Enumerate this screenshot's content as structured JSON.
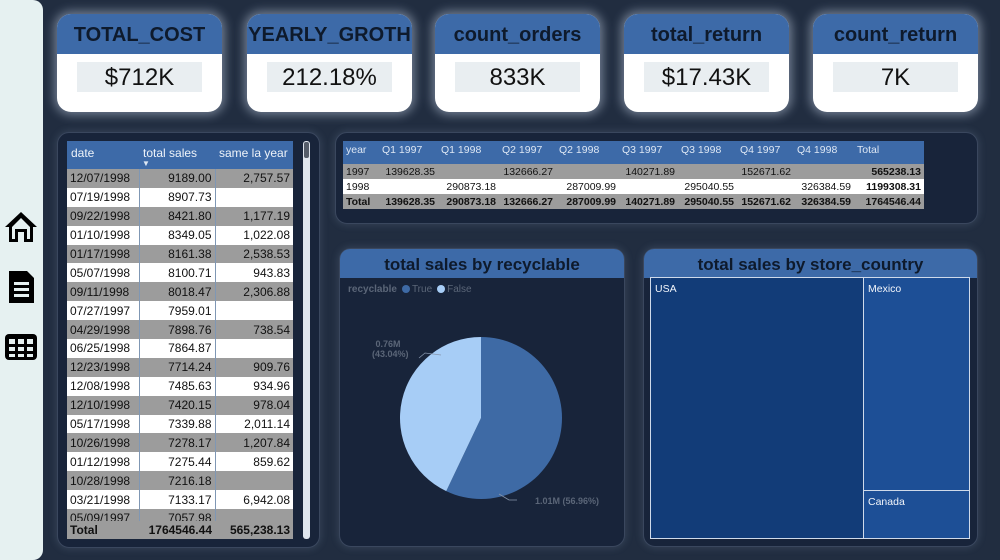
{
  "nav": {
    "home": "home-icon",
    "report": "document-icon",
    "table": "table-icon"
  },
  "kpis": [
    {
      "title": "TOTAL_COST",
      "value": "$712K"
    },
    {
      "title": "YEARLY_GROTH",
      "value": "212.18%"
    },
    {
      "title": "count_orders",
      "value": "833K"
    },
    {
      "title": "total_return",
      "value": "$17.43K"
    },
    {
      "title": "count_return",
      "value": "7K"
    }
  ],
  "sales_table": {
    "headers": [
      "date",
      "total sales",
      "same la year"
    ],
    "rows": [
      [
        "12/07/1998",
        "9189.00",
        "2,757.57"
      ],
      [
        "07/19/1998",
        "8907.73",
        ""
      ],
      [
        "09/22/1998",
        "8421.80",
        "1,177.19"
      ],
      [
        "01/10/1998",
        "8349.05",
        "1,022.08"
      ],
      [
        "01/17/1998",
        "8161.38",
        "2,538.53"
      ],
      [
        "05/07/1998",
        "8100.71",
        "943.83"
      ],
      [
        "09/11/1998",
        "8018.47",
        "2,306.88"
      ],
      [
        "07/27/1997",
        "7959.01",
        ""
      ],
      [
        "04/29/1998",
        "7898.76",
        "738.54"
      ],
      [
        "06/25/1998",
        "7864.87",
        ""
      ],
      [
        "12/23/1998",
        "7714.24",
        "909.76"
      ],
      [
        "12/08/1998",
        "7485.63",
        "934.96"
      ],
      [
        "12/10/1998",
        "7420.15",
        "978.04"
      ],
      [
        "05/17/1998",
        "7339.88",
        "2,011.14"
      ],
      [
        "10/26/1998",
        "7278.17",
        "1,207.84"
      ],
      [
        "01/12/1998",
        "7275.44",
        "859.62"
      ],
      [
        "10/28/1998",
        "7216.18",
        ""
      ],
      [
        "03/21/1998",
        "7133.17",
        "6,942.08"
      ],
      [
        "05/09/1997",
        "7057.98",
        ""
      ]
    ],
    "total": [
      "Total",
      "1764546.44",
      "565,238.13"
    ]
  },
  "matrix": {
    "headers": [
      "year",
      "Q1 1997",
      "Q1 1998",
      "Q2 1997",
      "Q2 1998",
      "Q3 1997",
      "Q3 1998",
      "Q4 1997",
      "Q4 1998",
      "Total"
    ],
    "rows": [
      [
        "1997",
        "139628.35",
        "",
        "132666.27",
        "",
        "140271.89",
        "",
        "152671.62",
        "",
        "565238.13"
      ],
      [
        "1998",
        "",
        "290873.18",
        "",
        "287009.99",
        "",
        "295040.55",
        "",
        "326384.59",
        "1199308.31"
      ]
    ],
    "total": [
      "Total",
      "139628.35",
      "290873.18",
      "132666.27",
      "287009.99",
      "140271.89",
      "295040.55",
      "152671.62",
      "326384.59",
      "1764546.44"
    ]
  },
  "recyclable_chart": {
    "title": "total sales by recyclable",
    "legend_title": "recyclable",
    "legend": [
      {
        "label": "True",
        "color": "#3e6aa5"
      },
      {
        "label": "False",
        "color": "#a7cdf6"
      }
    ],
    "labels": [
      {
        "line1": "0.76M",
        "line2": "(43.04%)"
      },
      {
        "line1": "1.01M (56.96%)"
      }
    ]
  },
  "country_chart": {
    "title": "total sales by store_country",
    "countries": [
      "USA",
      "Mexico",
      "Canada"
    ]
  },
  "chart_data": [
    {
      "type": "pie",
      "title": "total sales by recyclable",
      "legend_title": "recyclable",
      "categories": [
        "True",
        "False"
      ],
      "values": [
        1010000,
        760000
      ],
      "percents": [
        56.96,
        43.04
      ],
      "colors": [
        "#3e6aa5",
        "#a7cdf6"
      ],
      "legend_position": "top-left"
    },
    {
      "type": "treemap",
      "title": "total sales by store_country",
      "categories": [
        "USA",
        "Mexico",
        "Canada"
      ],
      "colors": [
        "#123c78",
        "#1d4f96",
        "#1d4f96"
      ]
    }
  ]
}
